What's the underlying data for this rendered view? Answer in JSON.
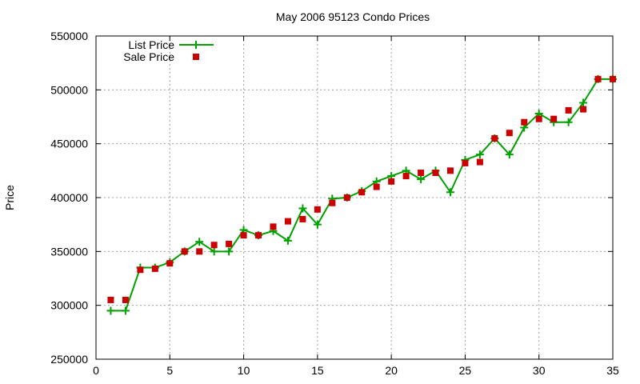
{
  "chart_data": {
    "type": "line",
    "title": "May 2006 95123 Condo Prices",
    "xlabel": "",
    "ylabel": "Price",
    "xlim": [
      0,
      35
    ],
    "ylim": [
      250000,
      550000
    ],
    "x_ticks": [
      0,
      5,
      10,
      15,
      20,
      25,
      30,
      35
    ],
    "y_ticks": [
      250000,
      300000,
      350000,
      400000,
      450000,
      500000,
      550000
    ],
    "x_tick_labels": [
      "0",
      "5",
      "10",
      "15",
      "20",
      "25",
      "30",
      "35"
    ],
    "y_tick_labels": [
      "250000",
      "300000",
      "350000",
      "400000",
      "450000",
      "500000",
      "550000"
    ],
    "grid": true,
    "legend_position": "top-left",
    "series": [
      {
        "name": "List Price",
        "style": "linespoints",
        "marker": "plus",
        "color": "#00a000",
        "x": [
          1,
          2,
          3,
          4,
          5,
          6,
          7,
          8,
          9,
          10,
          11,
          12,
          13,
          14,
          15,
          16,
          17,
          18,
          19,
          20,
          21,
          22,
          23,
          24,
          25,
          26,
          27,
          28,
          29,
          30,
          31,
          32,
          33,
          34,
          35
        ],
        "values": [
          295000,
          295000,
          335000,
          335000,
          340000,
          350000,
          359000,
          350000,
          350000,
          370000,
          365000,
          369000,
          360000,
          390000,
          375000,
          399000,
          400000,
          406000,
          415000,
          420000,
          425000,
          417000,
          425000,
          405000,
          435000,
          440000,
          455000,
          440000,
          465000,
          478000,
          470000,
          470000,
          488000,
          510000,
          510000
        ]
      },
      {
        "name": "Sale Price",
        "style": "points",
        "marker": "square",
        "color": "#cc0000",
        "x": [
          1,
          2,
          3,
          4,
          5,
          6,
          7,
          8,
          9,
          10,
          11,
          12,
          13,
          14,
          15,
          16,
          17,
          18,
          19,
          20,
          21,
          22,
          23,
          24,
          25,
          26,
          27,
          28,
          29,
          30,
          31,
          32,
          33,
          34,
          35
        ],
        "values": [
          305000,
          305000,
          333000,
          334000,
          339000,
          350000,
          350000,
          356000,
          357000,
          365000,
          365000,
          373000,
          378000,
          380000,
          389000,
          395000,
          400000,
          405000,
          410000,
          415000,
          420000,
          423000,
          423000,
          425000,
          432000,
          433000,
          455000,
          460000,
          470000,
          473000,
          473000,
          481000,
          482000,
          510000,
          510000
        ]
      }
    ]
  }
}
